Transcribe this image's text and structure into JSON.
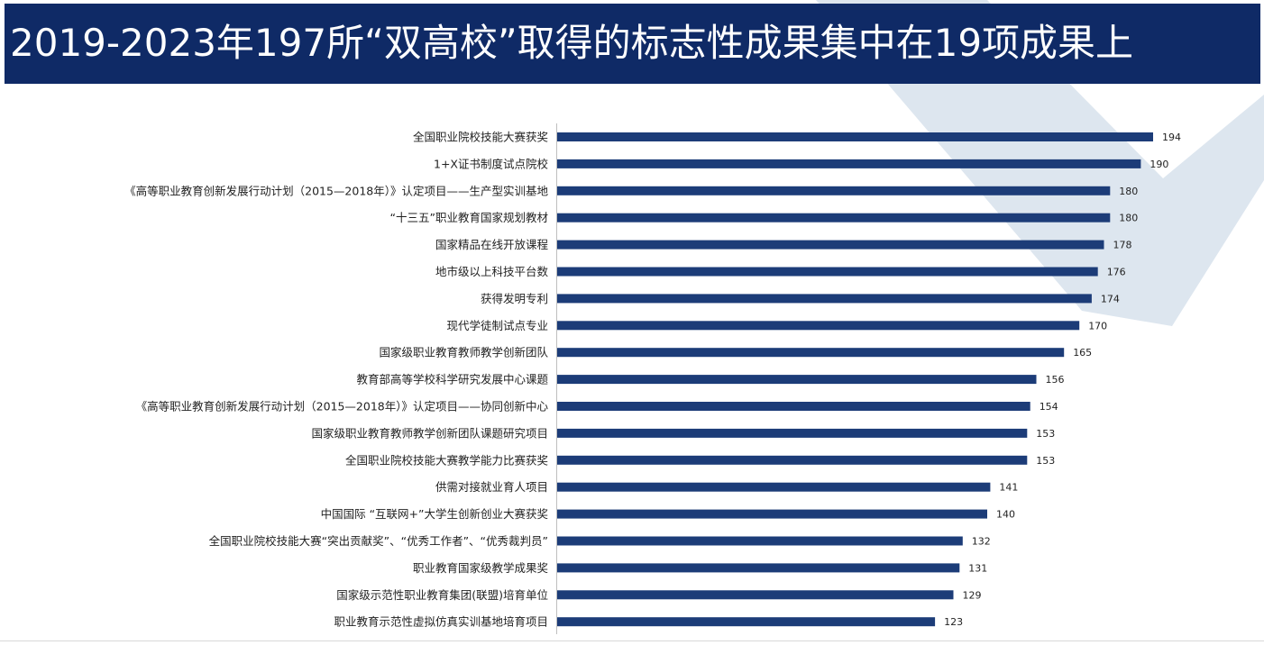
{
  "title": "2019-2023年197所“双高校”取得的标志性成果集中在19项成果上",
  "colors": {
    "title_bar": "#0f2a66",
    "bar": "#1c3c78",
    "decoration": "#dde6ef",
    "text": "#222222",
    "axis": "#bfbfbf"
  },
  "chart_data": {
    "type": "bar",
    "orientation": "horizontal",
    "title": "",
    "xlabel": "",
    "ylabel": "",
    "xlim": [
      0,
      194
    ],
    "grid": false,
    "legend": "none",
    "data_labels": true,
    "categories": [
      "全国职业院校技能大赛获奖",
      "1+X证书制度试点院校",
      "《高等职业教育创新发展行动计划（2015—2018年）》认定项目——生产型实训基地",
      "“十三五”职业教育国家规划教材",
      "国家精品在线开放课程",
      "地市级以上科技平台数",
      "获得发明专利",
      "现代学徒制试点专业",
      "国家级职业教育教师教学创新团队",
      "教育部高等学校科学研究发展中心课题",
      "《高等职业教育创新发展行动计划（2015—2018年）》认定项目——协同创新中心",
      "国家级职业教育教师教学创新团队课题研究项目",
      "全国职业院校技能大赛教学能力比赛获奖",
      "供需对接就业育人项目",
      "中国国际 “互联网+”大学生创新创业大赛获奖",
      "全国职业院校技能大赛“突出贡献奖”、“优秀工作者”、“优秀裁判员”",
      "职业教育国家级教学成果奖",
      "国家级示范性职业教育集团(联盟)培育单位",
      "职业教育示范性虚拟仿真实训基地培育项目"
    ],
    "values": [
      194,
      190,
      180,
      180,
      178,
      176,
      174,
      170,
      165,
      156,
      154,
      153,
      153,
      141,
      140,
      132,
      131,
      129,
      123
    ]
  }
}
